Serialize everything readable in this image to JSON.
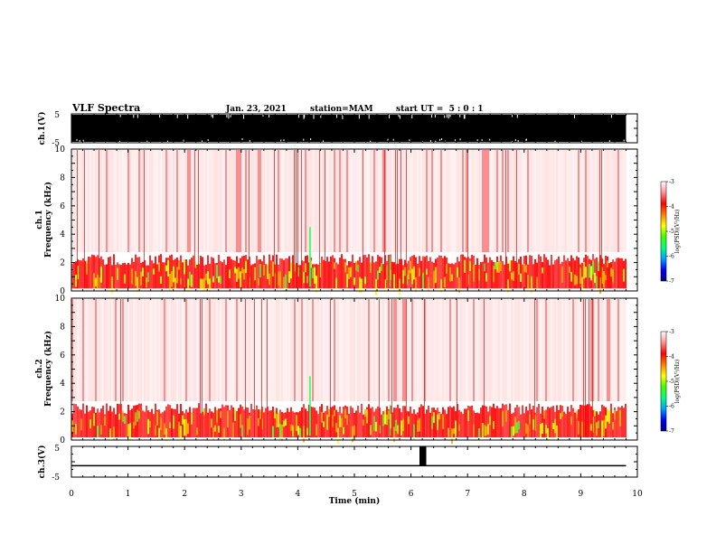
{
  "header": {
    "title": "VLF Spectra",
    "date": "Jan. 23, 2021",
    "station": "station=MAM",
    "start": "start UT =  5 : 0 : 1"
  },
  "chart_data": [
    {
      "type": "line",
      "name": "ch1-waveform",
      "ylabel": "ch.1(V)",
      "ylim": [
        -5,
        5
      ],
      "yticks": [
        "5",
        "-5"
      ],
      "xlim": [
        0,
        10
      ],
      "data_extent_min": 9.8,
      "note_values": "dense signal saturating the full range"
    },
    {
      "type": "heatmap",
      "name": "ch1-spectrogram",
      "ylabel_line1": "ch.1",
      "ylabel_line2": "Frequency (kHz)",
      "ylim": [
        0,
        10
      ],
      "yticks": [
        "0",
        "2",
        "4",
        "6",
        "8",
        "10"
      ],
      "xlim": [
        0,
        10
      ],
      "data_extent_min": 9.8
    },
    {
      "type": "heatmap",
      "name": "ch2-spectrogram",
      "ylabel_line1": "ch.2",
      "ylabel_line2": "Frequency (kHz)",
      "ylim": [
        0,
        10
      ],
      "yticks": [
        "0",
        "2",
        "4",
        "6",
        "8",
        "10"
      ],
      "xlim": [
        0,
        10
      ],
      "data_extent_min": 9.8
    },
    {
      "type": "line",
      "name": "ch3-waveform",
      "ylabel": "ch.3(V)",
      "ylim": [
        -5,
        5
      ],
      "yticks": [
        "5",
        "-5"
      ],
      "xlim": [
        0,
        10
      ],
      "baseline": -1.3,
      "burst": {
        "x": [
          6.15,
          6.27
        ],
        "y": [
          -1.3,
          5
        ]
      }
    }
  ],
  "xaxis": {
    "label": "Time (min)",
    "ticks": [
      "0",
      "1",
      "2",
      "3",
      "4",
      "5",
      "6",
      "7",
      "8",
      "9",
      "10"
    ]
  },
  "colorbar": {
    "label": "log(PSD)(V²/Hz)",
    "ticks": [
      "-3",
      "-4",
      "-5",
      "-6",
      "-7"
    ],
    "range": [
      -7,
      -3
    ],
    "colors": [
      "#000080",
      "#0000ff",
      "#00a0ff",
      "#00ff80",
      "#40ff00",
      "#ffff00",
      "#ff8000",
      "#ff0000",
      "#ff9090",
      "#ffffff"
    ]
  }
}
